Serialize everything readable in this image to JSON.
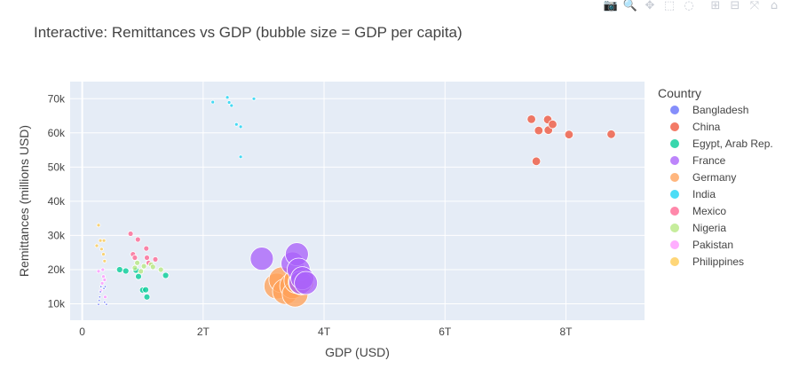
{
  "modebar": {
    "buttons": [
      {
        "name": "camera-icon",
        "glyph": "📷"
      },
      {
        "name": "zoom-icon",
        "glyph": "🔍"
      },
      {
        "name": "pan-icon",
        "glyph": "✥"
      },
      {
        "name": "box-select-icon",
        "glyph": "⬚"
      },
      {
        "name": "lasso-select-icon",
        "glyph": "◌"
      },
      {
        "name": "zoom-in-icon",
        "glyph": "⊞"
      },
      {
        "name": "zoom-out-icon",
        "glyph": "⊟"
      },
      {
        "name": "autoscale-icon",
        "glyph": "⤧"
      },
      {
        "name": "reset-axes-icon",
        "glyph": "⌂"
      }
    ]
  },
  "chart_data": {
    "type": "scatter",
    "title": "Interactive: Remittances vs GDP (bubble size = GDP per capita)",
    "xlabel": "GDP (USD)",
    "ylabel": "Remittances (millions USD)",
    "x_ticks": [
      {
        "value": 0,
        "label": "0"
      },
      {
        "value": 2,
        "label": "2T"
      },
      {
        "value": 4,
        "label": "4T"
      },
      {
        "value": 6,
        "label": "6T"
      },
      {
        "value": 8,
        "label": "8T"
      }
    ],
    "y_ticks": [
      {
        "value": 10,
        "label": "10k"
      },
      {
        "value": 20,
        "label": "20k"
      },
      {
        "value": 30,
        "label": "30k"
      },
      {
        "value": 40,
        "label": "40k"
      },
      {
        "value": 50,
        "label": "50k"
      },
      {
        "value": 60,
        "label": "60k"
      },
      {
        "value": 70,
        "label": "70k"
      }
    ],
    "x_unit": "trillion USD",
    "y_unit": "thousand million USD",
    "xlim": [
      -0.2,
      9.3
    ],
    "ylim": [
      5.2,
      75
    ],
    "grid": true,
    "legend": {
      "title": "Country",
      "placement": "right"
    },
    "series": [
      {
        "name": "Bangladesh",
        "color": "#636efa",
        "points": [
          [
            0.27,
            9.8,
            1.3
          ],
          [
            0.28,
            11.0,
            1.3
          ],
          [
            0.29,
            12.0,
            1.3
          ],
          [
            0.3,
            13.5,
            1.3
          ],
          [
            0.31,
            15.0,
            1.3
          ],
          [
            0.36,
            14.5,
            1.3
          ],
          [
            0.37,
            10.5,
            1.3
          ],
          [
            0.38,
            15.0,
            1.3
          ],
          [
            0.4,
            9.8,
            1.3
          ]
        ]
      },
      {
        "name": "China",
        "color": "#EF553B",
        "points": [
          [
            7.43,
            64.0,
            4.8
          ],
          [
            7.51,
            51.7,
            4.8
          ],
          [
            7.55,
            60.7,
            4.8
          ],
          [
            7.7,
            63.9,
            4.8
          ],
          [
            7.71,
            60.8,
            4.8
          ],
          [
            7.78,
            62.5,
            4.8
          ],
          [
            8.05,
            59.5,
            4.8
          ],
          [
            8.75,
            59.6,
            4.8
          ]
        ]
      },
      {
        "name": "Egypt, Arab Rep.",
        "color": "#00cc96",
        "points": [
          [
            0.62,
            20.0,
            3.5
          ],
          [
            0.72,
            19.6,
            3.5
          ],
          [
            0.89,
            19.8,
            3.5
          ],
          [
            0.93,
            18.0,
            3.5
          ],
          [
            1.0,
            14.0,
            3.5
          ],
          [
            1.05,
            14.1,
            3.5
          ],
          [
            1.07,
            12.0,
            3.5
          ],
          [
            1.38,
            18.3,
            3.5
          ]
        ]
      },
      {
        "name": "France",
        "color": "#ab63fa",
        "points": [
          [
            2.97,
            23.2,
            13.0
          ],
          [
            3.48,
            21.8,
            13.0
          ],
          [
            3.55,
            24.5,
            13.0
          ],
          [
            3.58,
            20.0,
            13.0
          ],
          [
            3.61,
            16.2,
            13.0
          ],
          [
            3.64,
            17.5,
            13.0
          ],
          [
            3.7,
            16.1,
            13.0
          ]
        ]
      },
      {
        "name": "Germany",
        "color": "#FFA15A",
        "points": [
          [
            3.22,
            15.2,
            14.5
          ],
          [
            3.3,
            17.0,
            14.5
          ],
          [
            3.36,
            13.6,
            14.5
          ],
          [
            3.48,
            15.3,
            14.5
          ],
          [
            3.52,
            12.8,
            14.5
          ],
          [
            3.55,
            16.8,
            14.5
          ],
          [
            3.62,
            16.4,
            14.5
          ]
        ]
      },
      {
        "name": "India",
        "color": "#19d3f3",
        "points": [
          [
            2.16,
            69.0,
            2.0
          ],
          [
            2.4,
            70.4,
            2.0
          ],
          [
            2.43,
            68.9,
            2.0
          ],
          [
            2.47,
            68.0,
            2.0
          ],
          [
            2.55,
            62.5,
            2.0
          ],
          [
            2.62,
            61.8,
            2.0
          ],
          [
            2.62,
            53.0,
            2.0
          ],
          [
            2.84,
            70.0,
            2.0
          ]
        ]
      },
      {
        "name": "Mexico",
        "color": "#FF6692",
        "points": [
          [
            0.8,
            30.5,
            3.0
          ],
          [
            0.84,
            24.5,
            3.0
          ],
          [
            0.87,
            23.5,
            3.0
          ],
          [
            0.92,
            28.8,
            3.0
          ],
          [
            1.06,
            26.2,
            3.0
          ],
          [
            1.07,
            23.5,
            3.0
          ],
          [
            1.1,
            22.0,
            3.0
          ],
          [
            1.21,
            23.0,
            3.0
          ]
        ]
      },
      {
        "name": "Nigeria",
        "color": "#B6E880",
        "points": [
          [
            0.87,
            20.5,
            3.0
          ],
          [
            0.91,
            22.0,
            3.0
          ],
          [
            0.97,
            19.5,
            3.0
          ],
          [
            1.02,
            21.0,
            3.0
          ],
          [
            1.14,
            21.5,
            3.0
          ],
          [
            1.17,
            20.8,
            3.0
          ],
          [
            1.3,
            20.0,
            3.0
          ]
        ]
      },
      {
        "name": "Pakistan",
        "color": "#FF97FF",
        "points": [
          [
            0.27,
            19.5,
            2.0
          ],
          [
            0.31,
            13.8,
            2.0
          ],
          [
            0.33,
            16.0,
            2.0
          ],
          [
            0.34,
            20.0,
            2.0
          ],
          [
            0.35,
            18.0,
            2.0
          ],
          [
            0.37,
            17.0,
            2.0
          ],
          [
            0.38,
            12.0,
            2.0
          ]
        ]
      },
      {
        "name": "Philippines",
        "color": "#FECB52",
        "points": [
          [
            0.24,
            27.0,
            2.0
          ],
          [
            0.27,
            33.0,
            2.0
          ],
          [
            0.3,
            28.5,
            2.0
          ],
          [
            0.32,
            26.0,
            2.0
          ],
          [
            0.35,
            24.5,
            2.0
          ],
          [
            0.36,
            28.5,
            2.0
          ],
          [
            0.37,
            22.5,
            2.0
          ]
        ]
      }
    ]
  }
}
